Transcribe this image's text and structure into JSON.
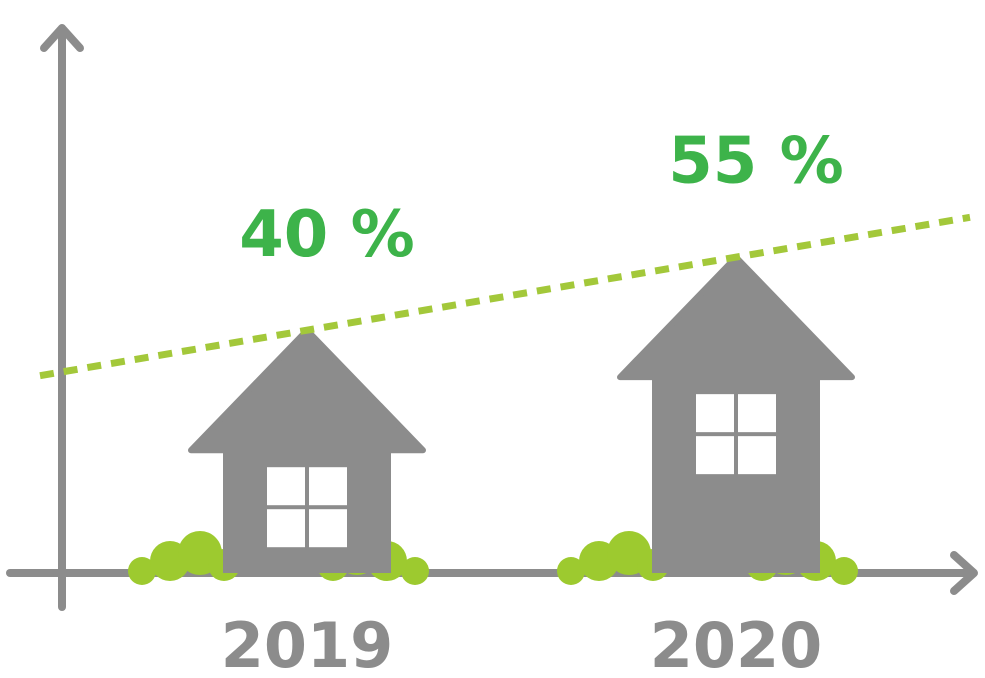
{
  "chart_data": {
    "type": "bar",
    "categories": [
      "2019",
      "2020"
    ],
    "values": [
      40,
      55
    ],
    "value_labels": [
      "40 %",
      "55 %"
    ],
    "color": "#8c8c8c",
    "label_color": "#3db34a",
    "trend_color": "#a3c83a"
  }
}
